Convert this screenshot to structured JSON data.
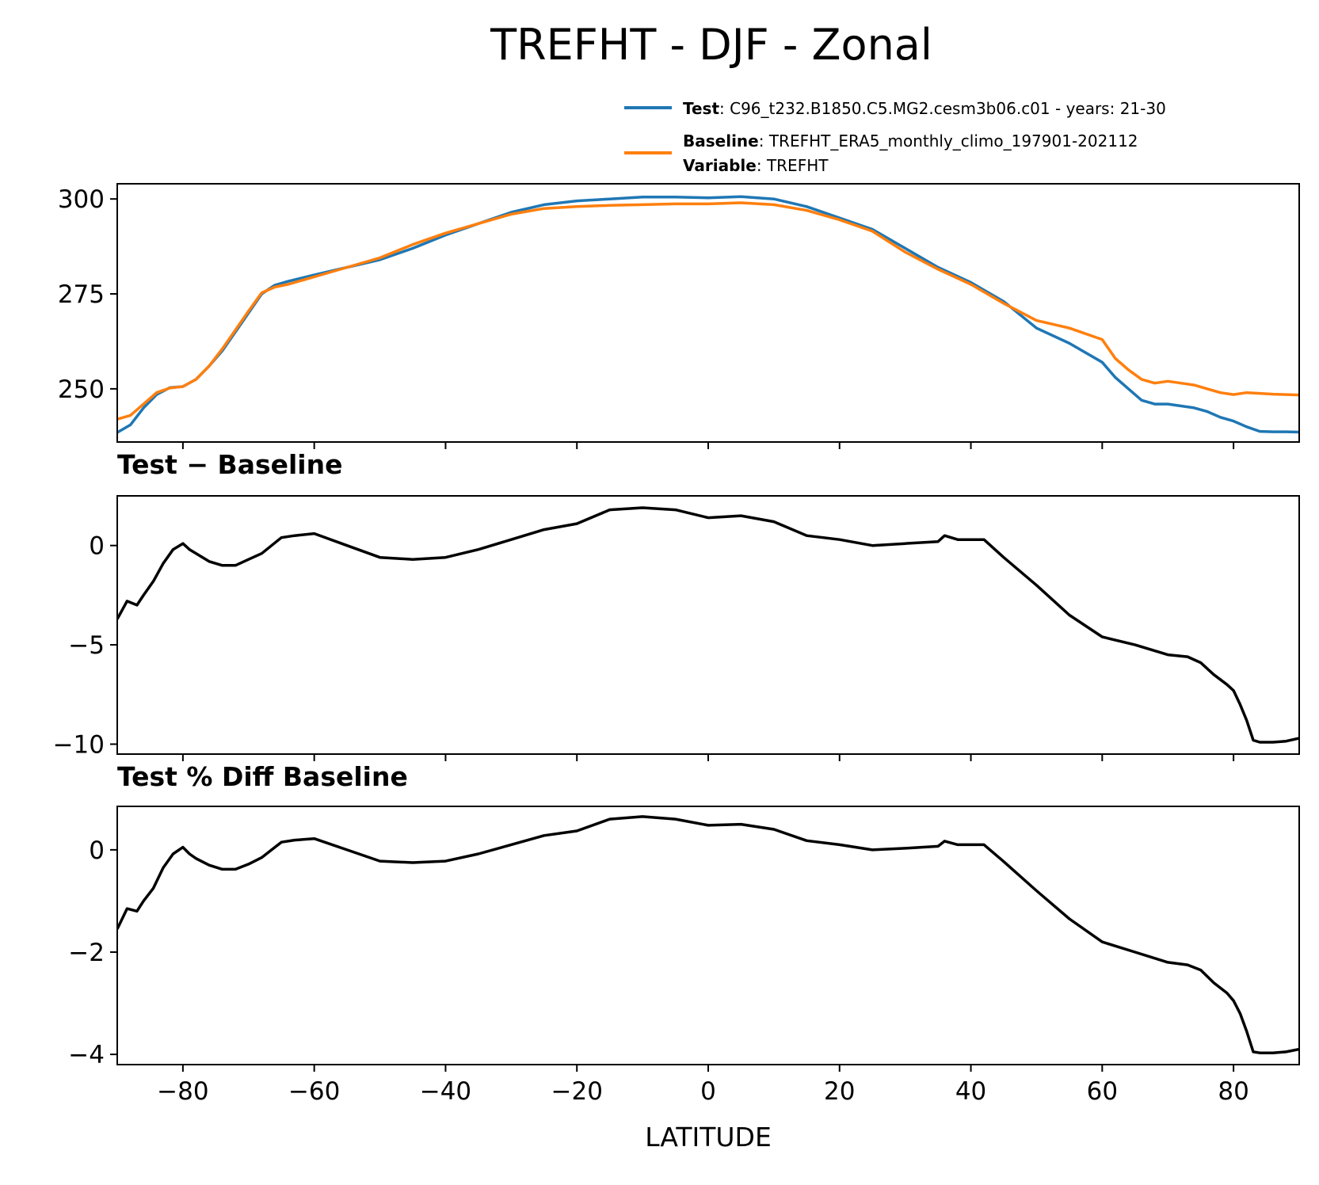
{
  "figure_title": "TREFHT - DJF - Zonal",
  "colors": {
    "test": "#1f77b4",
    "baseline": "#ff7f0e",
    "diff": "#000000"
  },
  "legend": [
    {
      "series": "test",
      "lines": [
        {
          "bold": "Test",
          "text": ": C96_t232.B1850.C5.MG2.cesm3b06.c01 - years: 21-30"
        }
      ]
    },
    {
      "series": "baseline",
      "lines": [
        {
          "bold": "Baseline",
          "text": ": TREFHT_ERA5_monthly_climo_197901-202112"
        },
        {
          "bold": "Variable",
          "text": ": TREFHT"
        }
      ]
    }
  ],
  "chart_data": [
    {
      "type": "line",
      "title": "",
      "xlabel": "",
      "ylabel": "",
      "xlim": [
        -90,
        90
      ],
      "ylim": [
        236,
        304
      ],
      "xticks": [
        -80,
        -60,
        -40,
        -20,
        0,
        20,
        40,
        60,
        80
      ],
      "yticks": [
        250,
        275,
        300
      ],
      "series": [
        {
          "key": "test",
          "name": "Test",
          "x": [
            -90,
            -88,
            -86,
            -84,
            -82,
            -80,
            -78,
            -76,
            -74,
            -72,
            -70,
            -68,
            -66,
            -64,
            -60,
            -55,
            -50,
            -45,
            -40,
            -35,
            -30,
            -25,
            -20,
            -15,
            -10,
            -5,
            0,
            5,
            10,
            15,
            20,
            25,
            30,
            35,
            40,
            45,
            50,
            55,
            60,
            62,
            64,
            66,
            68,
            70,
            72,
            74,
            76,
            78,
            80,
            82,
            84,
            86,
            88,
            90
          ],
          "y": [
            238.5,
            240.5,
            245,
            248.5,
            250.3,
            250.6,
            252.5,
            256,
            260,
            265,
            270,
            275,
            277.3,
            278.3,
            280,
            282,
            284,
            287,
            290.5,
            293.5,
            296.5,
            298.5,
            299.5,
            300,
            300.5,
            300.5,
            300.3,
            300.6,
            300,
            298,
            295,
            292,
            287,
            282,
            278,
            273,
            266,
            262,
            257,
            253,
            250,
            247,
            246,
            246,
            245.5,
            245,
            244,
            242.5,
            241.5,
            240,
            238.8,
            238.7,
            238.7,
            238.6
          ]
        },
        {
          "key": "baseline",
          "name": "Baseline",
          "x": [
            -90,
            -88,
            -86,
            -84,
            -82,
            -80,
            -78,
            -76,
            -74,
            -72,
            -70,
            -68,
            -66,
            -64,
            -60,
            -55,
            -50,
            -45,
            -40,
            -35,
            -30,
            -25,
            -20,
            -15,
            -10,
            -5,
            0,
            5,
            10,
            15,
            20,
            25,
            30,
            35,
            40,
            45,
            50,
            55,
            60,
            62,
            64,
            66,
            68,
            70,
            72,
            74,
            76,
            78,
            80,
            82,
            84,
            86,
            88,
            90
          ],
          "y": [
            242,
            243,
            246,
            249,
            250.2,
            250.6,
            252.5,
            256,
            260.5,
            265.5,
            270.5,
            275.3,
            276.8,
            277.5,
            279.5,
            282,
            284.5,
            288,
            291,
            293.5,
            296,
            297.5,
            298,
            298.3,
            298.5,
            298.7,
            298.7,
            299,
            298.5,
            297,
            294.5,
            291.5,
            286,
            281.5,
            277.5,
            272.5,
            268,
            266,
            263,
            258,
            255,
            252.5,
            251.5,
            252,
            251.5,
            251,
            250,
            249,
            248.5,
            249,
            248.8,
            248.6,
            248.5,
            248.4
          ]
        }
      ]
    },
    {
      "type": "line",
      "title": "Test − Baseline",
      "xlabel": "",
      "ylabel": "",
      "xlim": [
        -90,
        90
      ],
      "ylim": [
        -10.5,
        2.5
      ],
      "xticks": [
        -80,
        -60,
        -40,
        -20,
        0,
        20,
        40,
        60,
        80
      ],
      "yticks": [
        -10,
        -5,
        0
      ],
      "series": [
        {
          "key": "diff",
          "name": "",
          "x": [
            -90,
            -88.5,
            -87,
            -86,
            -84.5,
            -83,
            -81.5,
            -80,
            -79,
            -78,
            -76,
            -74,
            -72,
            -70,
            -68,
            -66.5,
            -65,
            -63,
            -60,
            -55,
            -50,
            -45,
            -40,
            -35,
            -30,
            -25,
            -20,
            -15,
            -10,
            -5,
            0,
            5,
            10,
            15,
            20,
            25,
            30,
            35,
            36,
            38,
            42,
            45,
            50,
            55,
            60,
            65,
            70,
            73,
            75,
            77,
            79,
            80,
            81,
            82,
            83,
            84,
            86,
            88,
            90
          ],
          "y": [
            -3.7,
            -2.8,
            -3,
            -2.5,
            -1.8,
            -0.9,
            -0.2,
            0.1,
            -0.2,
            -0.4,
            -0.8,
            -1,
            -1,
            -0.7,
            -0.4,
            0,
            0.4,
            0.5,
            0.6,
            0,
            -0.6,
            -0.7,
            -0.6,
            -0.2,
            0.3,
            0.8,
            1.1,
            1.8,
            1.9,
            1.8,
            1.4,
            1.5,
            1.2,
            0.5,
            0.3,
            0,
            0.1,
            0.2,
            0.5,
            0.3,
            0.3,
            -0.6,
            -2,
            -3.5,
            -4.6,
            -5,
            -5.5,
            -5.6,
            -5.9,
            -6.5,
            -7,
            -7.3,
            -8,
            -8.8,
            -9.8,
            -9.9,
            -9.9,
            -9.85,
            -9.7
          ]
        }
      ]
    },
    {
      "type": "line",
      "title": "Test % Diff Baseline",
      "xlabel": "LATITUDE",
      "ylabel": "",
      "xlim": [
        -90,
        90
      ],
      "ylim": [
        -4.2,
        0.85
      ],
      "xticks": [
        -80,
        -60,
        -40,
        -20,
        0,
        20,
        40,
        60,
        80
      ],
      "yticks": [
        -4,
        -2,
        0
      ],
      "series": [
        {
          "key": "diff",
          "name": "",
          "x": [
            -90,
            -88.5,
            -87,
            -86,
            -84.5,
            -83,
            -81.5,
            -80,
            -79,
            -78,
            -76,
            -74,
            -72,
            -70,
            -68,
            -66.5,
            -65,
            -63,
            -60,
            -55,
            -50,
            -45,
            -40,
            -35,
            -30,
            -25,
            -20,
            -15,
            -10,
            -5,
            0,
            5,
            10,
            15,
            20,
            25,
            30,
            35,
            36,
            38,
            42,
            45,
            50,
            55,
            60,
            65,
            70,
            73,
            75,
            77,
            79,
            80,
            81,
            82,
            83,
            84,
            86,
            88,
            90
          ],
          "y": [
            -1.55,
            -1.15,
            -1.2,
            -1.0,
            -0.75,
            -0.35,
            -0.08,
            0.05,
            -0.08,
            -0.17,
            -0.3,
            -0.38,
            -0.38,
            -0.28,
            -0.15,
            0.0,
            0.15,
            0.19,
            0.22,
            0.0,
            -0.22,
            -0.25,
            -0.22,
            -0.08,
            0.1,
            0.28,
            0.37,
            0.6,
            0.65,
            0.6,
            0.48,
            0.5,
            0.4,
            0.18,
            0.1,
            0.0,
            0.03,
            0.07,
            0.17,
            0.1,
            0.1,
            -0.23,
            -0.8,
            -1.35,
            -1.8,
            -2.0,
            -2.2,
            -2.25,
            -2.35,
            -2.6,
            -2.8,
            -2.95,
            -3.2,
            -3.55,
            -3.95,
            -3.97,
            -3.97,
            -3.95,
            -3.9
          ]
        }
      ]
    }
  ]
}
